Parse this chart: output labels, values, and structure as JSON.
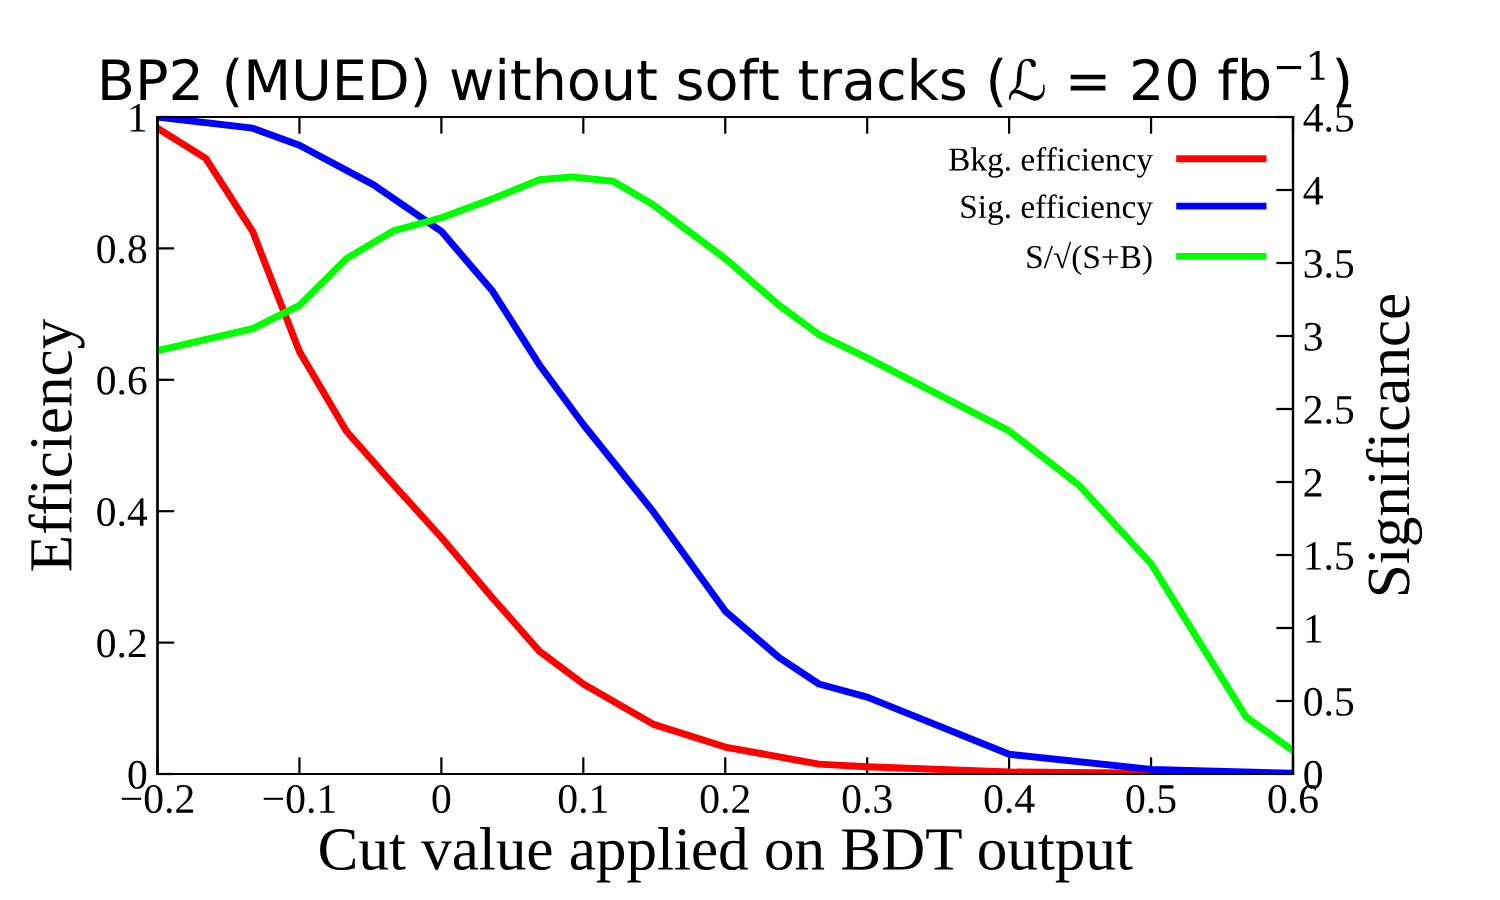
{
  "chart_data": {
    "type": "line",
    "title": "BP2 (MUED) without soft tracks (ℒ = 20 fb$^{−1}$)",
    "xlabel": "Cut value applied on BDT output",
    "ylabel": "Efficiency",
    "y2label": "Significance",
    "xlim": [
      -0.2,
      0.6
    ],
    "xticks": [
      {
        "value": -0.2,
        "label": "−0.2"
      },
      {
        "value": -0.1,
        "label": "−0.1"
      },
      0,
      0.1,
      0.2,
      0.3,
      0.4,
      0.5,
      0.6
    ],
    "ylim": [
      0,
      1
    ],
    "yticks": [
      0,
      0.2,
      0.4,
      0.6,
      0.8,
      1
    ],
    "y2lim": [
      0,
      4.5
    ],
    "y2ticks": [
      0,
      0.5,
      1,
      1.5,
      2,
      2.5,
      3,
      3.5,
      4,
      4.5
    ],
    "legend": "top right",
    "grid": false,
    "series": [
      {
        "name": "Bkg. efficiency",
        "color": "#ff0000",
        "x": [
          -0.2,
          -0.166,
          -0.133,
          -0.1,
          -0.067,
          -0.034,
          0,
          0.036,
          0.069,
          0.1,
          0.149,
          0.2,
          0.266,
          0.3,
          0.4,
          0.5,
          0.6
        ],
        "values": [
          0.983,
          0.937,
          0.826,
          0.643,
          0.522,
          0.441,
          0.36,
          0.268,
          0.187,
          0.137,
          0.076,
          0.041,
          0.015,
          0.011,
          0.003,
          0.001,
          0.0
        ]
      },
      {
        "name": "Sig. efficiency",
        "color": "#0000ff",
        "x": [
          -0.2,
          -0.133,
          -0.1,
          -0.048,
          0,
          0.036,
          0.069,
          0.1,
          0.149,
          0.2,
          0.238,
          0.266,
          0.3,
          0.4,
          0.5,
          0.6
        ],
        "values": [
          1.0,
          0.983,
          0.957,
          0.897,
          0.826,
          0.735,
          0.623,
          0.532,
          0.4,
          0.248,
          0.177,
          0.137,
          0.117,
          0.03,
          0.007,
          0.001
        ]
      },
      {
        "name": "S/√(S+B)",
        "color": "#00ff00",
        "axis": "y2",
        "x": [
          -0.2,
          -0.133,
          -0.1,
          -0.067,
          -0.034,
          0,
          0.036,
          0.069,
          0.092,
          0.121,
          0.149,
          0.2,
          0.238,
          0.266,
          0.3,
          0.4,
          0.449,
          0.5,
          0.535,
          0.567,
          0.6
        ],
        "values": [
          2.9,
          3.05,
          3.21,
          3.53,
          3.72,
          3.81,
          3.94,
          4.07,
          4.09,
          4.06,
          3.9,
          3.53,
          3.21,
          3.01,
          2.85,
          2.35,
          1.98,
          1.44,
          0.89,
          0.39,
          0.16
        ]
      }
    ]
  }
}
